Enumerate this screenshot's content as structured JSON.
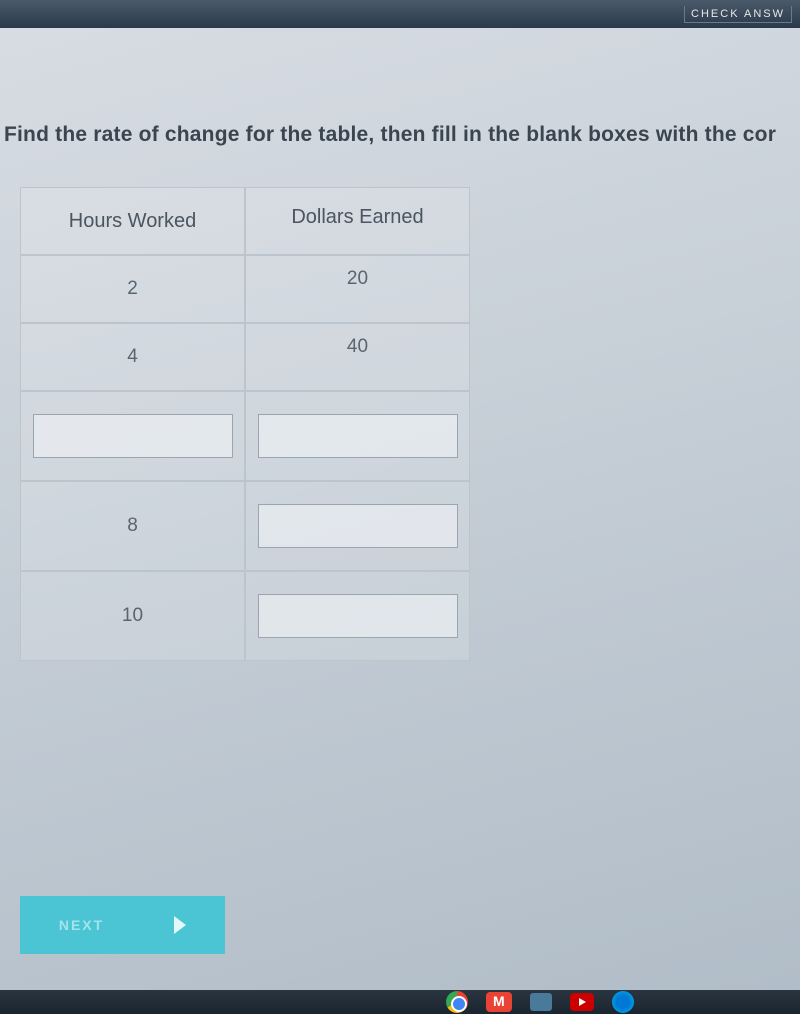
{
  "top_bar": {
    "check_answer_label": "CHECK ANSW"
  },
  "question": {
    "text": "Find the rate of change for the table, then fill in the blank boxes with the cor"
  },
  "table": {
    "headers": {
      "left": "Hours Worked",
      "right": "Dollars Earned"
    },
    "rows": [
      {
        "hours": "2",
        "dollars": "20",
        "hours_input": false,
        "dollars_input": false
      },
      {
        "hours": "4",
        "dollars": "40",
        "hours_input": false,
        "dollars_input": false
      },
      {
        "hours": "",
        "dollars": "",
        "hours_input": true,
        "dollars_input": true
      },
      {
        "hours": "8",
        "dollars": "",
        "hours_input": false,
        "dollars_input": true
      },
      {
        "hours": "10",
        "dollars": "",
        "hours_input": false,
        "dollars_input": true
      }
    ],
    "colors": {
      "border": "#bcc5ce",
      "text": "#5a6570",
      "input_bg": "#f0f3f6",
      "input_border": "#9aa5b0"
    }
  },
  "next_button": {
    "label": "NEXT",
    "bg_color": "#4bc5d4"
  },
  "taskbar": {
    "icons": [
      "chrome",
      "gmail",
      "files",
      "youtube",
      "edge"
    ]
  }
}
